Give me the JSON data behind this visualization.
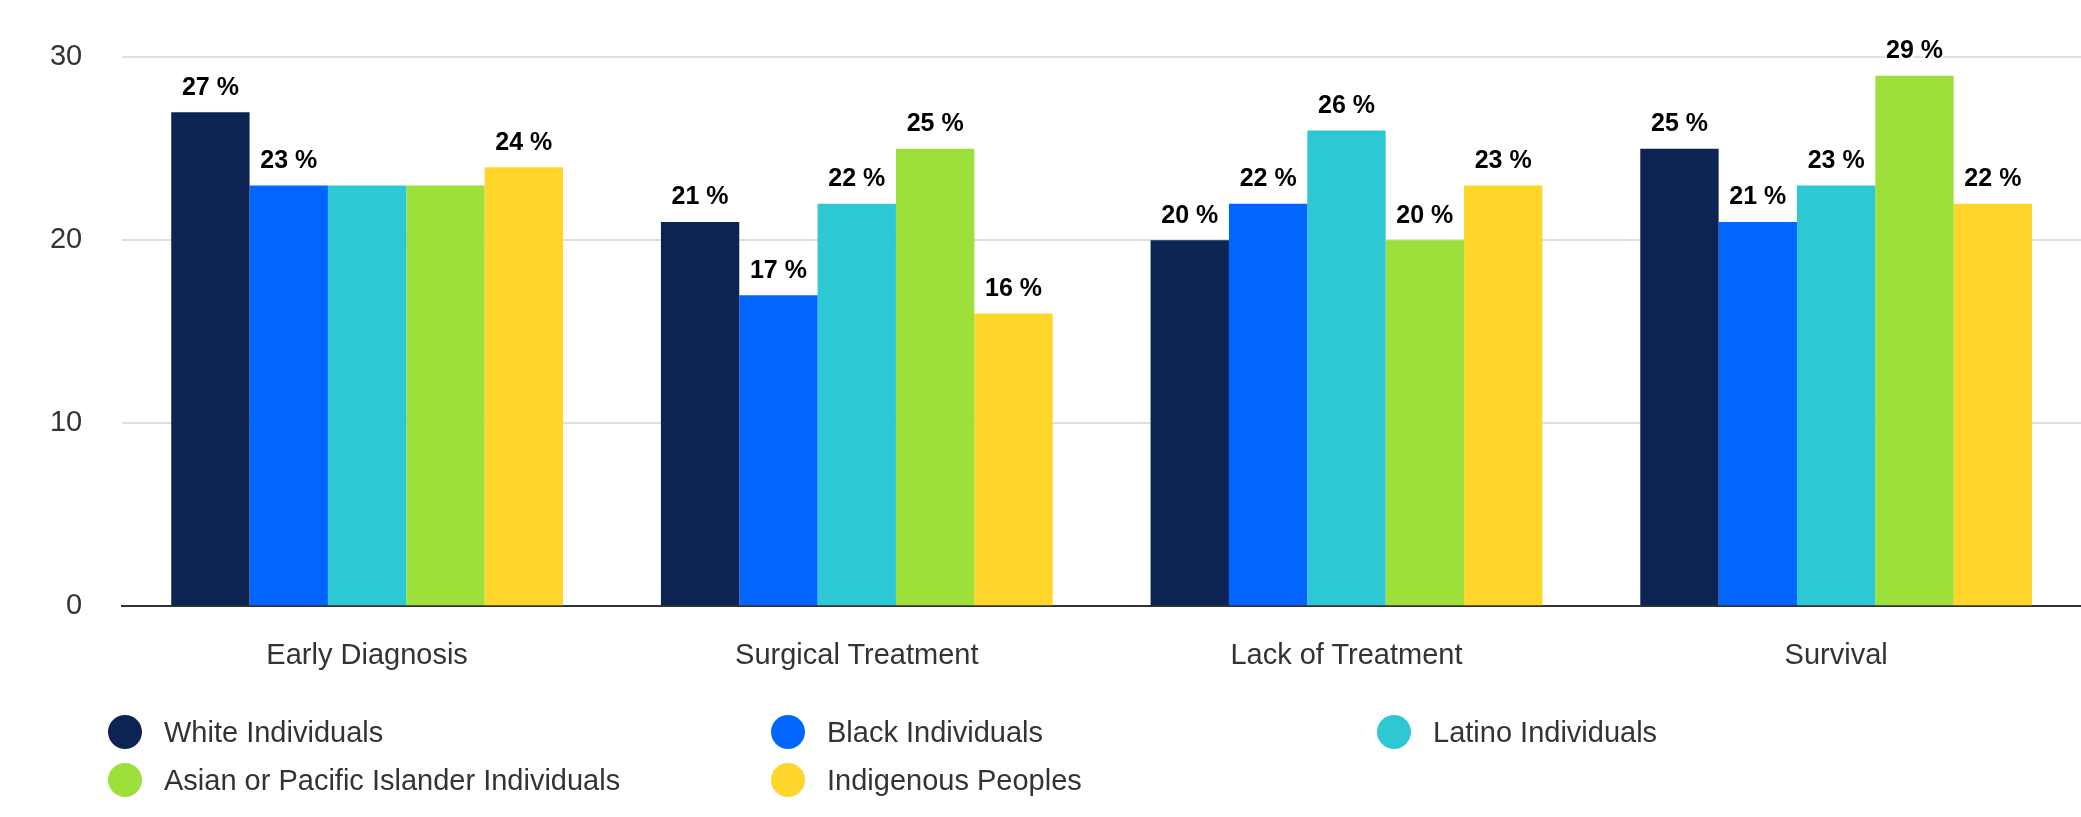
{
  "chart_data": {
    "type": "bar",
    "categories": [
      "Early Diagnosis",
      "Surgical Treatment",
      "Lack of Treatment",
      "Survival"
    ],
    "series": [
      {
        "name": "White Individuals",
        "color": "#0d2352",
        "values": [
          27,
          21,
          20,
          25
        ],
        "value_labels": [
          "27 %",
          "21 %",
          "20 %",
          "25 %"
        ]
      },
      {
        "name": "Black Individuals",
        "color": "#0066ff",
        "values": [
          23,
          17,
          22,
          21
        ],
        "value_labels": [
          "23 %",
          "17 %",
          "22 %",
          "21 %"
        ]
      },
      {
        "name": "Latino Individuals",
        "color": "#2ec8d4",
        "values": [
          23,
          22,
          26,
          23
        ],
        "value_labels": [
          null,
          "22 %",
          "26 %",
          "23 %"
        ]
      },
      {
        "name": "Asian or Pacific Islander Individuals",
        "color": "#9de03c",
        "values": [
          23,
          25,
          20,
          29
        ],
        "value_labels": [
          null,
          "25 %",
          "20 %",
          "29 %"
        ]
      },
      {
        "name": "Indigenous Peoples",
        "color": "#ffd52a",
        "values": [
          24,
          16,
          23,
          22
        ],
        "value_labels": [
          "24 %",
          "16 %",
          "23 %",
          "22 %"
        ]
      }
    ],
    "ylim": [
      0,
      30
    ],
    "yticks": [
      0,
      10,
      20,
      30
    ],
    "grid": "y",
    "legend": "bottom"
  }
}
